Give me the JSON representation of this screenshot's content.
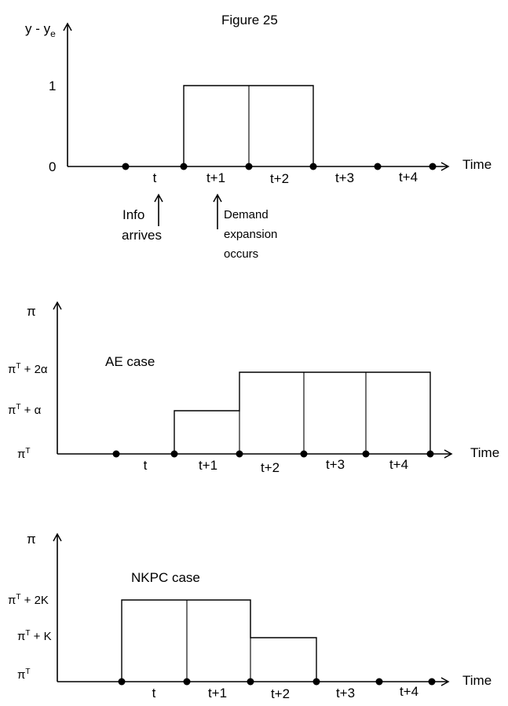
{
  "figure_title": "Figure 25",
  "panel1": {
    "y_axis_label": "y - y",
    "y_axis_sub": "e",
    "y_ticks": [
      "1",
      "0"
    ],
    "x_axis_label": "Time",
    "x_ticks": [
      "t",
      "t+1",
      "t+2",
      "t+3",
      "t+4"
    ],
    "note_info_line1": "Info",
    "note_info_line2": "arrives",
    "note_demand_line1": "Demand",
    "note_demand_line2": "expansion",
    "note_demand_line3": "occurs"
  },
  "panel2": {
    "y_axis_label": "π",
    "case_label": "AE case",
    "y_tick_top": {
      "base": "π",
      "sup": "T",
      "rest": " + 2α"
    },
    "y_tick_mid": {
      "base": "π",
      "sup": "T",
      "rest": " + α"
    },
    "y_tick_bot": {
      "base": "π",
      "sup": "T",
      "rest": ""
    },
    "x_axis_label": "Time",
    "x_ticks": [
      "t",
      "t+1",
      "t+2",
      "t+3",
      "t+4"
    ]
  },
  "panel3": {
    "y_axis_label": "π",
    "case_label": "NKPC case",
    "y_tick_top": {
      "base": "π",
      "sup": "T",
      "rest": " + 2K"
    },
    "y_tick_mid": {
      "base": "π",
      "sup": "T",
      "rest": " + K"
    },
    "y_tick_bot": {
      "base": "π",
      "sup": "T",
      "rest": ""
    },
    "x_axis_label": "Time",
    "x_ticks": [
      "t",
      "t+1",
      "t+2",
      "t+3",
      "t+4"
    ]
  }
}
